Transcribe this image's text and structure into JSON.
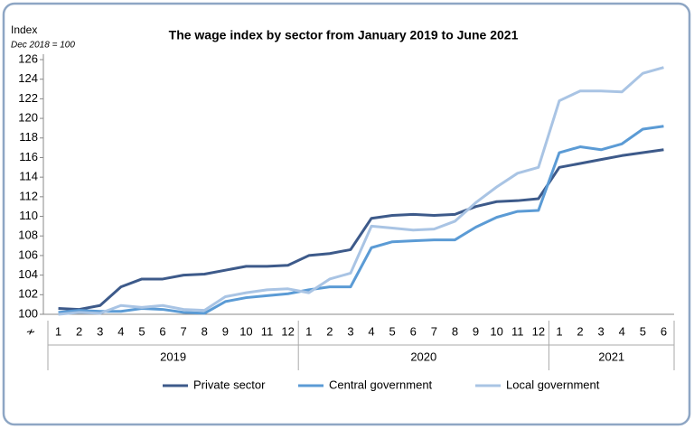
{
  "chart_data": {
    "type": "line",
    "title": "The wage index by sector from January 2019 to June 2021",
    "y_axis_label": "Index",
    "y_axis_subtitle": "Dec 2018 = 100",
    "categories": [
      "1",
      "2",
      "3",
      "4",
      "5",
      "6",
      "7",
      "8",
      "9",
      "10",
      "11",
      "12",
      "1",
      "2",
      "3",
      "4",
      "5",
      "6",
      "7",
      "8",
      "9",
      "10",
      "11",
      "12",
      "1",
      "2",
      "3",
      "4",
      "5",
      "6"
    ],
    "groups": [
      {
        "label": "2019",
        "span": 12
      },
      {
        "label": "2020",
        "span": 12
      },
      {
        "label": "2021",
        "span": 6
      }
    ],
    "series": [
      {
        "name": "Private sector",
        "color": "#3d5a8a",
        "values": [
          100.6,
          100.5,
          100.9,
          102.8,
          103.6,
          103.6,
          104.0,
          104.1,
          104.5,
          104.9,
          104.9,
          105.0,
          106.0,
          106.2,
          106.6,
          109.8,
          110.1,
          110.2,
          110.1,
          110.2,
          111.0,
          111.5,
          111.6,
          111.8,
          115.0,
          115.4,
          115.8,
          116.2,
          116.5,
          116.8
        ]
      },
      {
        "name": "Central government",
        "color": "#5b9bd5",
        "values": [
          100.2,
          100.4,
          100.3,
          100.3,
          100.6,
          100.5,
          100.2,
          100.1,
          101.3,
          101.7,
          101.9,
          102.1,
          102.5,
          102.8,
          102.8,
          106.8,
          107.4,
          107.5,
          107.6,
          107.6,
          108.9,
          109.9,
          110.5,
          110.6,
          116.5,
          117.1,
          116.8,
          117.4,
          118.9,
          119.2
        ]
      },
      {
        "name": "Local government",
        "color": "#a9c4e4",
        "values": [
          100.0,
          100.2,
          100.1,
          100.9,
          100.7,
          100.9,
          100.5,
          100.4,
          101.8,
          102.2,
          102.5,
          102.6,
          102.2,
          103.6,
          104.2,
          109.0,
          108.8,
          108.6,
          108.7,
          109.5,
          111.4,
          113.0,
          114.4,
          115.0,
          121.8,
          122.8,
          122.8,
          122.7,
          124.6,
          125.2
        ]
      }
    ],
    "ylim": [
      100,
      126
    ],
    "yticks": [
      100,
      102,
      104,
      106,
      108,
      110,
      112,
      114,
      116,
      118,
      120,
      122,
      124,
      126
    ],
    "grid": false,
    "legend": "bottom"
  }
}
